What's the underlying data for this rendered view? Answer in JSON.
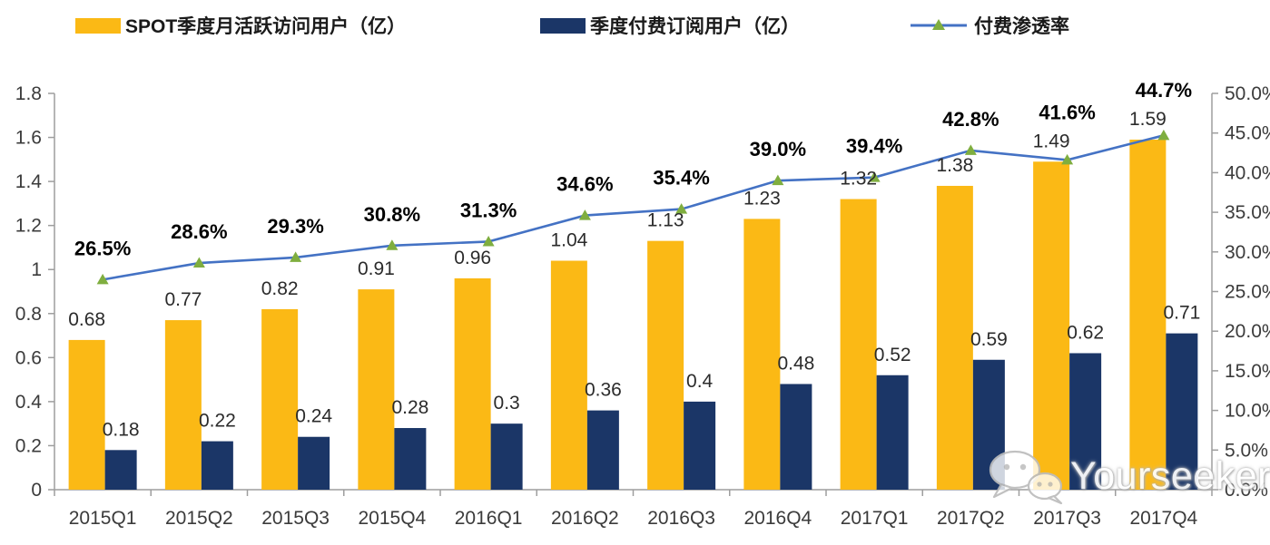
{
  "legend": [
    {
      "label": "SPOT季度月活跃访问用户（亿）",
      "color": "#FBB915",
      "type": "bar"
    },
    {
      "label": "季度付费订阅用户（亿）",
      "color": "#1B3667",
      "type": "bar"
    },
    {
      "label": "付费渗透率",
      "color": "#4472C4",
      "marker_color": "#7FAE3F",
      "type": "line"
    }
  ],
  "watermark": {
    "icon": "wechat-icon",
    "text": "Yourseeker"
  },
  "colors": {
    "mau_bar": "#FBB915",
    "subs_bar": "#1B3667",
    "line": "#4472C4",
    "marker": "#7FAE3F",
    "axis": "#9E9E9E",
    "axis_text": "#3B3B3B",
    "data_label": "#2B2B2B",
    "pct_label": "#000000"
  },
  "chart_data": {
    "type": "bar",
    "subtype": "bar+line combo, dual axis",
    "title": "",
    "categories": [
      "2015Q1",
      "2015Q2",
      "2015Q3",
      "2015Q4",
      "2016Q1",
      "2016Q2",
      "2016Q3",
      "2016Q4",
      "2017Q1",
      "2017Q2",
      "2017Q3",
      "2017Q4"
    ],
    "series": [
      {
        "name": "SPOT季度月活跃访问用户（亿）",
        "type": "bar",
        "axis": "left",
        "color": "#FBB915",
        "values": [
          0.68,
          0.77,
          0.82,
          0.91,
          0.96,
          1.04,
          1.13,
          1.23,
          1.32,
          1.38,
          1.49,
          1.59
        ],
        "labels": [
          "0.68",
          "0.77",
          "0.82",
          "0.91",
          "0.96",
          "1.04",
          "1.13",
          "1.23",
          "1.32",
          "1.38",
          "1.49",
          "1.59"
        ]
      },
      {
        "name": "季度付费订阅用户（亿）",
        "type": "bar",
        "axis": "left",
        "color": "#1B3667",
        "values": [
          0.18,
          0.22,
          0.24,
          0.28,
          0.3,
          0.36,
          0.4,
          0.48,
          0.52,
          0.59,
          0.62,
          0.71
        ],
        "labels": [
          "0.18",
          "0.22",
          "0.24",
          "0.28",
          "0.3",
          "0.36",
          "0.4",
          "0.48",
          "0.52",
          "0.59",
          "0.62",
          "0.71"
        ]
      },
      {
        "name": "付费渗透率",
        "type": "line",
        "axis": "right",
        "color": "#4472C4",
        "marker": "triangle",
        "marker_color": "#7FAE3F",
        "values": [
          26.5,
          28.6,
          29.3,
          30.8,
          31.3,
          34.6,
          35.4,
          39.0,
          39.4,
          42.8,
          41.6,
          44.7
        ],
        "labels": [
          "26.5%",
          "28.6%",
          "29.3%",
          "30.8%",
          "31.3%",
          "34.6%",
          "35.4%",
          "39.0%",
          "39.4%",
          "42.8%",
          "41.6%",
          "44.7%"
        ]
      }
    ],
    "left_axis": {
      "min": 0,
      "max": 1.8,
      "step": 0.2,
      "ticks": [
        "0",
        "0.2",
        "0.4",
        "0.6",
        "0.8",
        "1",
        "1.2",
        "1.4",
        "1.6",
        "1.8"
      ]
    },
    "right_axis": {
      "min": 0,
      "max": 50,
      "step": 5,
      "ticks": [
        "0.0%",
        "5.0%",
        "10.0%",
        "15.0%",
        "20.0%",
        "25.0%",
        "30.0%",
        "35.0%",
        "40.0%",
        "45.0%",
        "50.0%"
      ]
    },
    "grid": false,
    "legend_position": "top"
  }
}
